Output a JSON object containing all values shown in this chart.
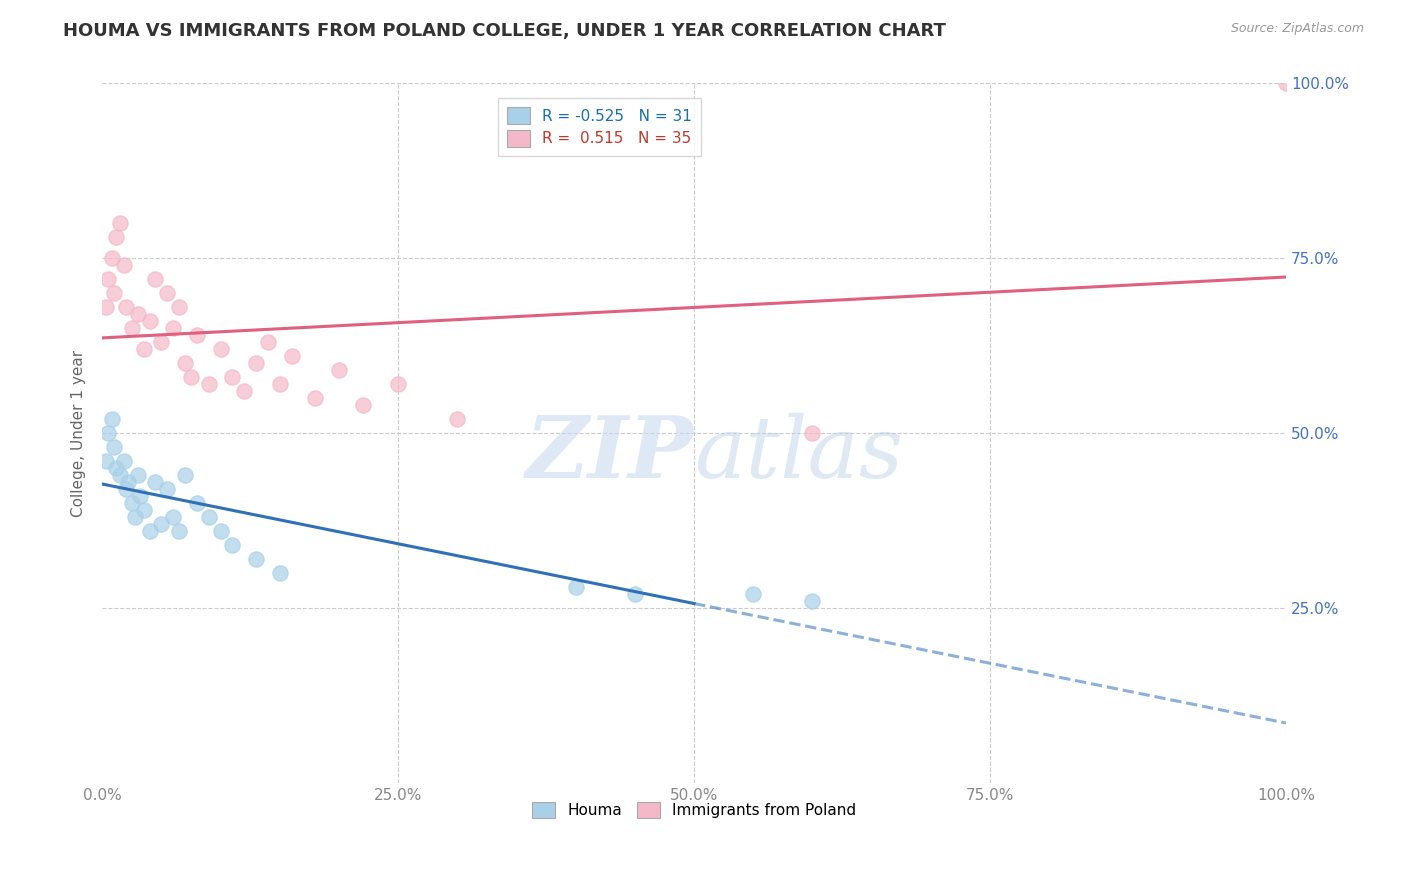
{
  "title": "HOUMA VS IMMIGRANTS FROM POLAND COLLEGE, UNDER 1 YEAR CORRELATION CHART",
  "source": "Source: ZipAtlas.com",
  "ylabel": "College, Under 1 year",
  "legend_label1": "Houma",
  "legend_label2": "Immigrants from Poland",
  "R1": -0.525,
  "N1": 31,
  "R2": 0.515,
  "N2": 35,
  "color1": "#a8d0e8",
  "color2": "#f4b8c8",
  "line_color1": "#3070b8",
  "line_color2": "#e06080",
  "blue_x": [
    0.3,
    0.5,
    0.8,
    1.0,
    1.2,
    1.5,
    1.8,
    2.0,
    2.2,
    2.5,
    2.8,
    3.0,
    3.2,
    3.5,
    4.0,
    4.5,
    5.0,
    5.5,
    6.0,
    6.5,
    7.0,
    8.0,
    9.0,
    10.0,
    11.0,
    13.0,
    15.0,
    40.0,
    45.0,
    55.0,
    60.0
  ],
  "blue_y": [
    46,
    50,
    52,
    48,
    45,
    44,
    46,
    42,
    43,
    40,
    38,
    44,
    41,
    39,
    36,
    43,
    37,
    42,
    38,
    36,
    44,
    40,
    38,
    36,
    34,
    32,
    30,
    28,
    27,
    27,
    26
  ],
  "pink_x": [
    0.3,
    0.5,
    0.8,
    1.0,
    1.2,
    1.5,
    1.8,
    2.0,
    2.5,
    3.0,
    3.5,
    4.0,
    4.5,
    5.0,
    5.5,
    6.0,
    6.5,
    7.0,
    7.5,
    8.0,
    9.0,
    10.0,
    11.0,
    12.0,
    13.0,
    14.0,
    15.0,
    16.0,
    18.0,
    20.0,
    22.0,
    25.0,
    30.0,
    60.0,
    100.0
  ],
  "pink_y": [
    68,
    72,
    75,
    70,
    78,
    80,
    74,
    68,
    65,
    67,
    62,
    66,
    72,
    63,
    70,
    65,
    68,
    60,
    58,
    64,
    57,
    62,
    58,
    56,
    60,
    63,
    57,
    61,
    55,
    59,
    54,
    57,
    52,
    50,
    100
  ],
  "xlim": [
    0.0,
    100.0
  ],
  "ylim": [
    0.0,
    100.0
  ],
  "xticks": [
    0.0,
    25.0,
    50.0,
    75.0,
    100.0
  ],
  "xtick_labels": [
    "0.0%",
    "25.0%",
    "50.0%",
    "75.0%",
    "100.0%"
  ],
  "yticks": [
    0,
    25,
    50,
    75,
    100
  ],
  "ytick_labels_right": [
    "",
    "25.0%",
    "50.0%",
    "75.0%",
    "100.0%"
  ],
  "watermark_zip": "ZIP",
  "watermark_atlas": "atlas",
  "background_color": "#ffffff",
  "grid_color": "#cccccc",
  "title_color": "#333333",
  "source_color": "#999999",
  "axis_label_color": "#666666",
  "tick_color": "#888888",
  "right_tick_color": "#4472C4"
}
